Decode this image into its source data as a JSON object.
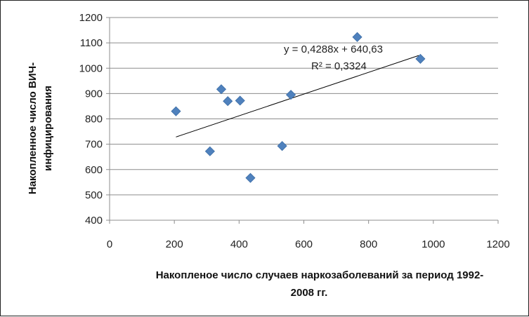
{
  "chart_data": {
    "type": "scatter",
    "xlabel_lines": [
      "Накопленое число случаев наркозаболеваний за период 1992-",
      "2008 гг."
    ],
    "ylabel_lines": [
      "Накопленное  число ВИЧ-",
      "инфицирования"
    ],
    "xlim": [
      0,
      1200
    ],
    "ylim": [
      400,
      1200
    ],
    "x_ticks": [
      "0",
      "200",
      "400",
      "600",
      "800",
      "1000",
      "1200"
    ],
    "y_ticks": [
      "400",
      "500",
      "600",
      "700",
      "800",
      "900",
      "1000",
      "1100",
      "1200"
    ],
    "grid": "horizontal",
    "marker_color": "#4F81BD",
    "trendline": {
      "slope": 0.4288,
      "intercept": 640.63,
      "x_range": [
        205,
        955
      ]
    },
    "equation_text": "y = 0,4288x + 640,63",
    "r2_text": "R² = 0,3324",
    "points": [
      {
        "x": 205,
        "y": 830
      },
      {
        "x": 310,
        "y": 672
      },
      {
        "x": 345,
        "y": 917
      },
      {
        "x": 365,
        "y": 870
      },
      {
        "x": 403,
        "y": 872
      },
      {
        "x": 435,
        "y": 567
      },
      {
        "x": 533,
        "y": 693
      },
      {
        "x": 560,
        "y": 895
      },
      {
        "x": 765,
        "y": 1123
      },
      {
        "x": 960,
        "y": 1037
      }
    ]
  }
}
